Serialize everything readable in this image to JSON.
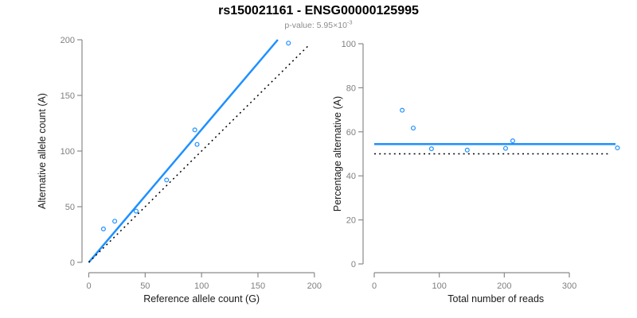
{
  "header": {
    "title": "rs150021161 - ENSG00000125995",
    "subtitle_full": "p-value: 5.95×10^-3"
  },
  "colors": {
    "accent_blue": "#1E90FF",
    "dotted_black": "#000000",
    "axis_gray": "#8a8a8a",
    "tick_label_gray": "#7f7f7f",
    "subtitle_gray": "#8c8c8c",
    "label_dark": "#1a1a1a",
    "background": "#ffffff"
  },
  "chart_data": {
    "type": "scatter",
    "title": "rs150021161 - ENSG00000125995",
    "subtitle_parts": {
      "prefix": "p-value: ",
      "mantissa": "5.95×10",
      "exponent": "-3"
    },
    "legend": "none",
    "grid": "off",
    "panels": [
      {
        "name": "allele-counts-scatter",
        "type": "scatter",
        "xlabel": "Reference allele count (G)",
        "ylabel": "Alternative allele count (A)",
        "xlim": [
          0,
          200
        ],
        "ylim": [
          0,
          200
        ],
        "xticks": [
          0,
          50,
          100,
          150,
          200
        ],
        "yticks": [
          0,
          50,
          100,
          150,
          200
        ],
        "points": [
          [
            13,
            30
          ],
          [
            23,
            37
          ],
          [
            42,
            46
          ],
          [
            69,
            74
          ],
          [
            94,
            119
          ],
          [
            96,
            106
          ],
          [
            177,
            197
          ]
        ],
        "point_color": "#1E90FF",
        "lines": [
          {
            "name": "fitted-line",
            "style": "solid",
            "color": "#1E90FF",
            "x1": 0,
            "y1": 0,
            "x2": 167.6,
            "y2": 200
          },
          {
            "name": "identity-line",
            "style": "dotted",
            "color": "#000000",
            "x1": 0,
            "y1": 0,
            "x2": 196,
            "y2": 196
          }
        ]
      },
      {
        "name": "percentage-vs-reads-scatter",
        "type": "scatter",
        "xlabel": "Total number of reads",
        "ylabel": "Percentage alternative (A)",
        "xlim": [
          0,
          374
        ],
        "ylim": [
          0,
          100
        ],
        "xticks": [
          0,
          100,
          200,
          300
        ],
        "yticks": [
          0,
          20,
          40,
          60,
          80,
          100
        ],
        "points": [
          [
            43,
            69.8
          ],
          [
            60,
            61.7
          ],
          [
            88,
            52.3
          ],
          [
            143,
            51.7
          ],
          [
            202,
            52.5
          ],
          [
            213,
            55.9
          ],
          [
            374,
            52.7
          ]
        ],
        "point_color": "#1E90FF",
        "lines": [
          {
            "name": "fitted-line",
            "style": "solid",
            "color": "#1E90FF",
            "x1": 0,
            "y1": 54.4,
            "x2": 371,
            "y2": 54.4
          },
          {
            "name": "null-line",
            "style": "dotted",
            "color": "#000000",
            "x1": 0,
            "y1": 50,
            "x2": 363,
            "y2": 50
          }
        ]
      }
    ]
  }
}
